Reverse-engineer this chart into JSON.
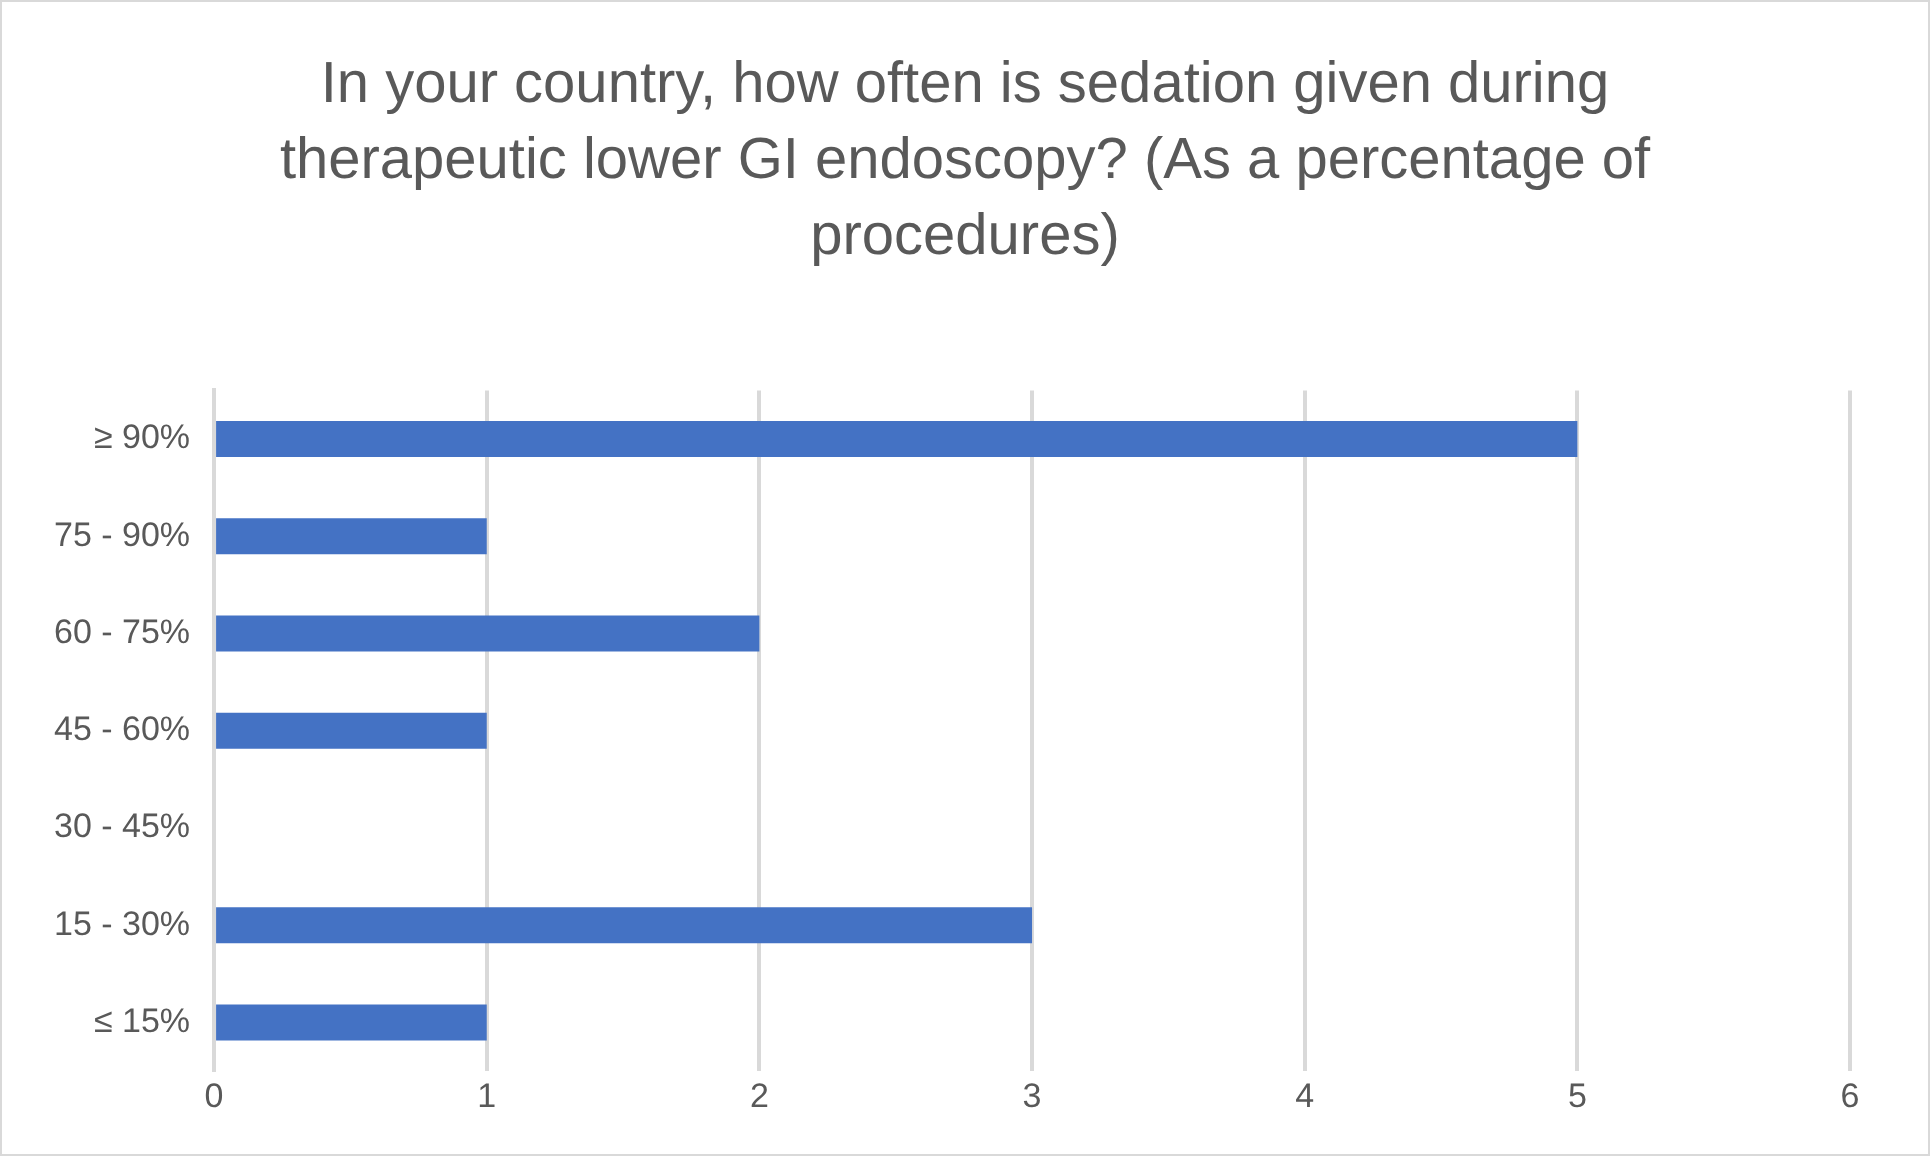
{
  "chart_data": {
    "type": "bar",
    "orientation": "horizontal",
    "title": "In your country, how often is sedation given during therapeutic lower GI endoscopy? (As a percentage of procedures)",
    "categories": [
      "≥ 90%",
      "75 - 90%",
      "60 - 75%",
      "45 - 60%",
      "30 - 45%",
      "15 - 30%",
      "≤ 15%"
    ],
    "values": [
      5,
      1,
      2,
      1,
      0,
      3,
      1
    ],
    "color": "#4472c4",
    "xlim": [
      0,
      6
    ],
    "xticks": [
      0,
      1,
      2,
      3,
      4,
      5,
      6
    ],
    "grid": "x"
  }
}
